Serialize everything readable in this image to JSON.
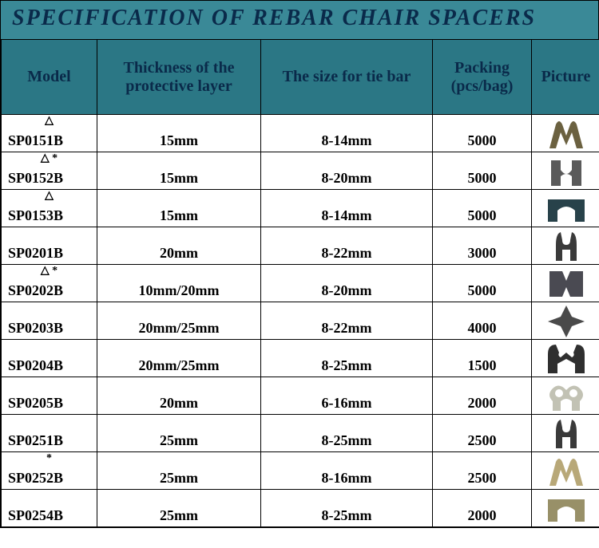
{
  "title": "SPECIFICATION OF REBAR CHAIR SPACERS",
  "header_bg": "#2b7785",
  "title_bg": "#3a8997",
  "columns": [
    "Model",
    "Thickness of the protective layer",
    "The size for tie bar",
    "Packing (pcs/bag)",
    "Picture"
  ],
  "rows": [
    {
      "badge": "△",
      "model": "SP0151B",
      "thickness": "15mm",
      "tiebar": "8-14mm",
      "packing": "5000",
      "shape": "open_clip",
      "color": "#6b6140"
    },
    {
      "badge": "△ *",
      "model": "SP0152B",
      "thickness": "15mm",
      "tiebar": "8-20mm",
      "packing": "5000",
      "shape": "saddle",
      "color": "#5a5a5a"
    },
    {
      "badge": "△",
      "model": "SP0153B",
      "thickness": "15mm",
      "tiebar": "8-14mm",
      "packing": "5000",
      "shape": "flat_notch",
      "color": "#28424a"
    },
    {
      "badge": "",
      "model": "SP0201B",
      "thickness": "20mm",
      "tiebar": "8-22mm",
      "packing": "3000",
      "shape": "tall_clip",
      "color": "#3a3a3a"
    },
    {
      "badge": "△ *",
      "model": "SP0202B",
      "thickness": "10mm/20mm",
      "tiebar": "8-20mm",
      "packing": "5000",
      "shape": "x_block",
      "color": "#4a4a52"
    },
    {
      "badge": "",
      "model": "SP0203B",
      "thickness": "20mm/25mm",
      "tiebar": "8-22mm",
      "packing": "4000",
      "shape": "cross_wing",
      "color": "#4a4a4a"
    },
    {
      "badge": "",
      "model": "SP0204B",
      "thickness": "20mm/25mm",
      "tiebar": "8-25mm",
      "packing": "1500",
      "shape": "wide_clip",
      "color": "#2f2f2f"
    },
    {
      "badge": "",
      "model": "SP0205B",
      "thickness": "20mm",
      "tiebar": "6-16mm",
      "packing": "2000",
      "shape": "round_clip",
      "color": "#c2c2b4"
    },
    {
      "badge": "",
      "model": "SP0251B",
      "thickness": "25mm",
      "tiebar": "8-25mm",
      "packing": "2500",
      "shape": "tall_clip",
      "color": "#3a3a3a"
    },
    {
      "badge": "*",
      "model": "SP0252B",
      "thickness": "25mm",
      "tiebar": "8-16mm",
      "packing": "2500",
      "shape": "open_clip",
      "color": "#b8a878"
    },
    {
      "badge": "",
      "model": "SP0254B",
      "thickness": "25mm",
      "tiebar": "8-25mm",
      "packing": "2000",
      "shape": "flat_notch",
      "color": "#989068"
    }
  ]
}
